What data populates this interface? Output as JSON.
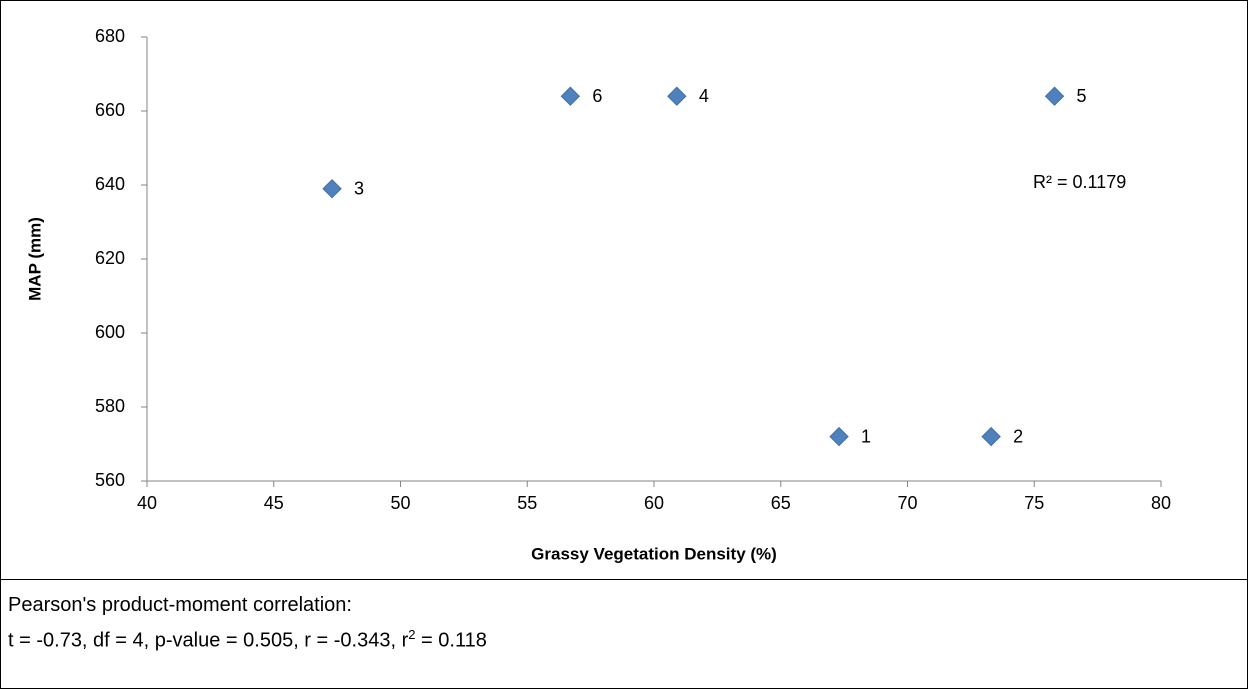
{
  "chart_data": {
    "type": "scatter",
    "x_label": "Grassy Vegetation Density (%)",
    "y_label": "MAP (mm)",
    "annotation": "R² = 0.1179",
    "x": [
      67.3,
      73.3,
      47.3,
      60.9,
      75.8,
      56.7
    ],
    "values": [
      572,
      572,
      639,
      664,
      664,
      664
    ],
    "labels": [
      "1",
      "2",
      "3",
      "4",
      "5",
      "6"
    ],
    "color": "#4f81bd",
    "xlim": [
      40,
      80
    ],
    "xticks": [
      40,
      45,
      50,
      55,
      60,
      65,
      70,
      75,
      80
    ],
    "ylim": [
      560,
      680
    ],
    "yticks": [
      560,
      580,
      600,
      620,
      640,
      660,
      680
    ],
    "grid": false
  },
  "text_box": {
    "line1": "Pearson's product-moment correlation:",
    "line2": "t = -0.73, df = 4, p-value = 0.505, r = -0.343, r",
    "superscript": "2",
    "line2_end": " = 0.118"
  }
}
